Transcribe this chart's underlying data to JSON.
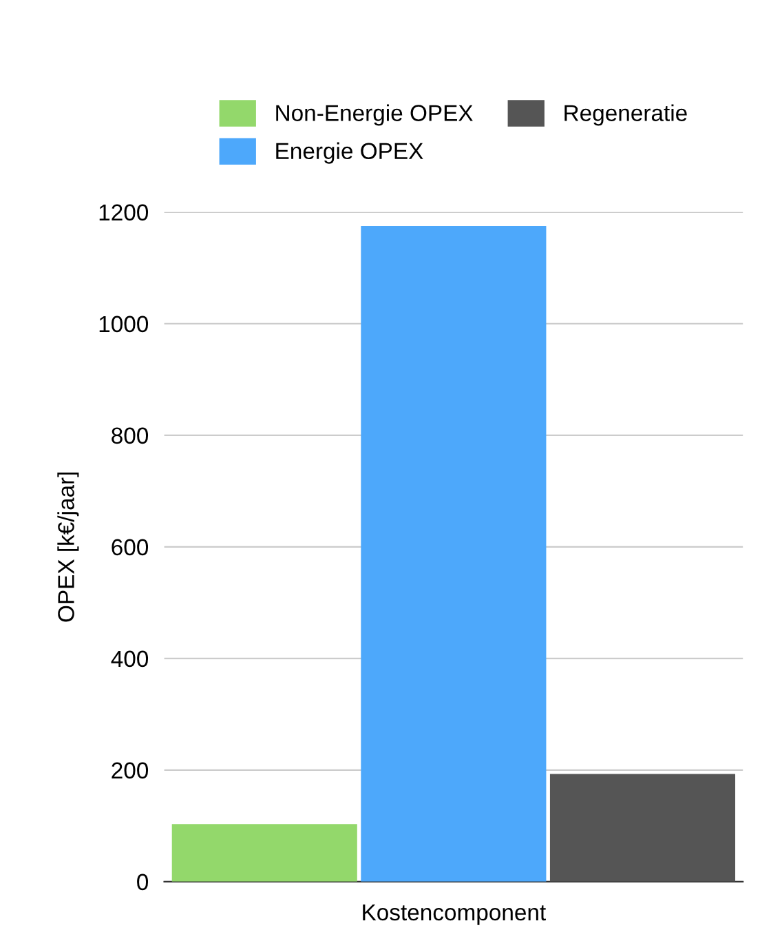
{
  "chart_data": {
    "type": "bar",
    "xlabel": "Kostencomponent",
    "ylabel": "OPEX [k€/jaar]",
    "categories": [
      null
    ],
    "series": [
      {
        "name": "Non-Energie OPEX",
        "color": "#93d86b",
        "values": [
          103
        ]
      },
      {
        "name": "Energie OPEX",
        "color": "#4da8fb",
        "values": [
          1175
        ]
      },
      {
        "name": "Regeneratie",
        "color": "#555555",
        "values": [
          193
        ]
      }
    ],
    "ylim": [
      0,
      1200
    ],
    "yticks": [
      0,
      200,
      400,
      600,
      800,
      1000,
      1200
    ],
    "grid": "y",
    "legend": "top"
  }
}
